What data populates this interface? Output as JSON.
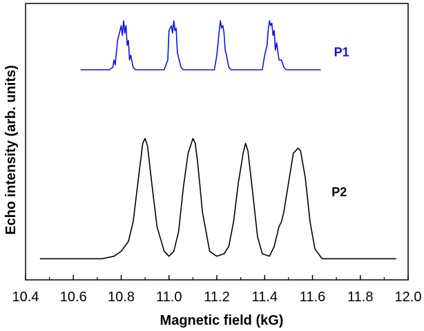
{
  "chart_data": {
    "type": "line",
    "title": "",
    "xlabel": "Magnetic field (kG)",
    "ylabel": "Echo intensity (arb. units)",
    "xlim": [
      10.4,
      12.0
    ],
    "x_ticks": [
      "10.4",
      "10.6",
      "10.8",
      "11.0",
      "11.2",
      "11.4",
      "11.6",
      "11.8",
      "12.0"
    ],
    "y_ticks_labeled": false,
    "ylim": [
      0,
      1.0
    ],
    "grid": false,
    "legend": "none",
    "series": [
      {
        "name": "P1",
        "color": "#1010e0",
        "x": [
          10.63,
          10.7,
          10.75,
          10.765,
          10.77,
          10.775,
          10.785,
          10.795,
          10.8,
          10.805,
          10.81,
          10.815,
          10.82,
          10.825,
          10.83,
          10.835,
          10.84,
          10.85,
          10.86,
          10.9,
          10.95,
          10.98,
          10.995,
          11.0,
          11.01,
          11.015,
          11.02,
          11.025,
          11.03,
          11.035,
          11.04,
          11.05,
          11.06,
          11.1,
          11.15,
          11.19,
          11.2,
          11.21,
          11.215,
          11.22,
          11.225,
          11.23,
          11.235,
          11.24,
          11.25,
          11.26,
          11.3,
          11.35,
          11.39,
          11.4,
          11.41,
          11.415,
          11.42,
          11.425,
          11.43,
          11.435,
          11.44,
          11.445,
          11.45,
          11.46,
          11.47,
          11.48,
          11.49,
          11.52,
          11.58,
          11.635
        ],
        "y": [
          0.8,
          0.8,
          0.8,
          0.81,
          0.84,
          0.82,
          0.92,
          0.96,
          0.98,
          0.94,
          1.0,
          0.95,
          0.98,
          0.9,
          0.92,
          0.84,
          0.86,
          0.81,
          0.8,
          0.8,
          0.8,
          0.8,
          0.84,
          0.96,
          0.98,
          0.95,
          1.0,
          0.96,
          0.97,
          0.87,
          0.85,
          0.81,
          0.8,
          0.8,
          0.8,
          0.8,
          0.86,
          0.96,
          1.0,
          0.97,
          0.98,
          0.95,
          0.88,
          0.86,
          0.81,
          0.8,
          0.8,
          0.8,
          0.8,
          0.86,
          0.9,
          0.96,
          1.0,
          0.98,
          0.99,
          0.94,
          0.96,
          0.88,
          0.91,
          0.84,
          0.84,
          0.81,
          0.8,
          0.8,
          0.8,
          0.8
        ]
      },
      {
        "name": "P2",
        "color": "#000000",
        "x": [
          10.46,
          10.55,
          10.65,
          10.72,
          10.77,
          10.8,
          10.83,
          10.85,
          10.87,
          10.89,
          10.9,
          10.91,
          10.93,
          10.95,
          10.98,
          11.0,
          11.02,
          11.04,
          11.06,
          11.08,
          11.1,
          11.11,
          11.12,
          11.14,
          11.17,
          11.2,
          11.23,
          11.25,
          11.27,
          11.29,
          11.31,
          11.32,
          11.33,
          11.35,
          11.37,
          11.39,
          11.42,
          11.44,
          11.46,
          11.47,
          11.48,
          11.5,
          11.52,
          11.54,
          11.55,
          11.57,
          11.59,
          11.61,
          11.64,
          11.7,
          11.8,
          11.9,
          11.95
        ],
        "y": [
          0.03,
          0.03,
          0.03,
          0.03,
          0.04,
          0.06,
          0.1,
          0.18,
          0.34,
          0.5,
          0.52,
          0.49,
          0.32,
          0.16,
          0.06,
          0.04,
          0.06,
          0.14,
          0.32,
          0.46,
          0.52,
          0.5,
          0.42,
          0.22,
          0.06,
          0.04,
          0.05,
          0.08,
          0.18,
          0.34,
          0.46,
          0.5,
          0.47,
          0.3,
          0.12,
          0.05,
          0.04,
          0.08,
          0.16,
          0.18,
          0.22,
          0.34,
          0.46,
          0.48,
          0.47,
          0.36,
          0.18,
          0.07,
          0.03,
          0.03,
          0.03,
          0.03,
          0.03
        ]
      }
    ],
    "annotations": [
      {
        "text": "P1",
        "x": 11.69,
        "y": 0.855,
        "color": "#1010e0"
      },
      {
        "text": "P2",
        "x": 11.68,
        "y": 0.285,
        "color": "#000000"
      }
    ]
  }
}
